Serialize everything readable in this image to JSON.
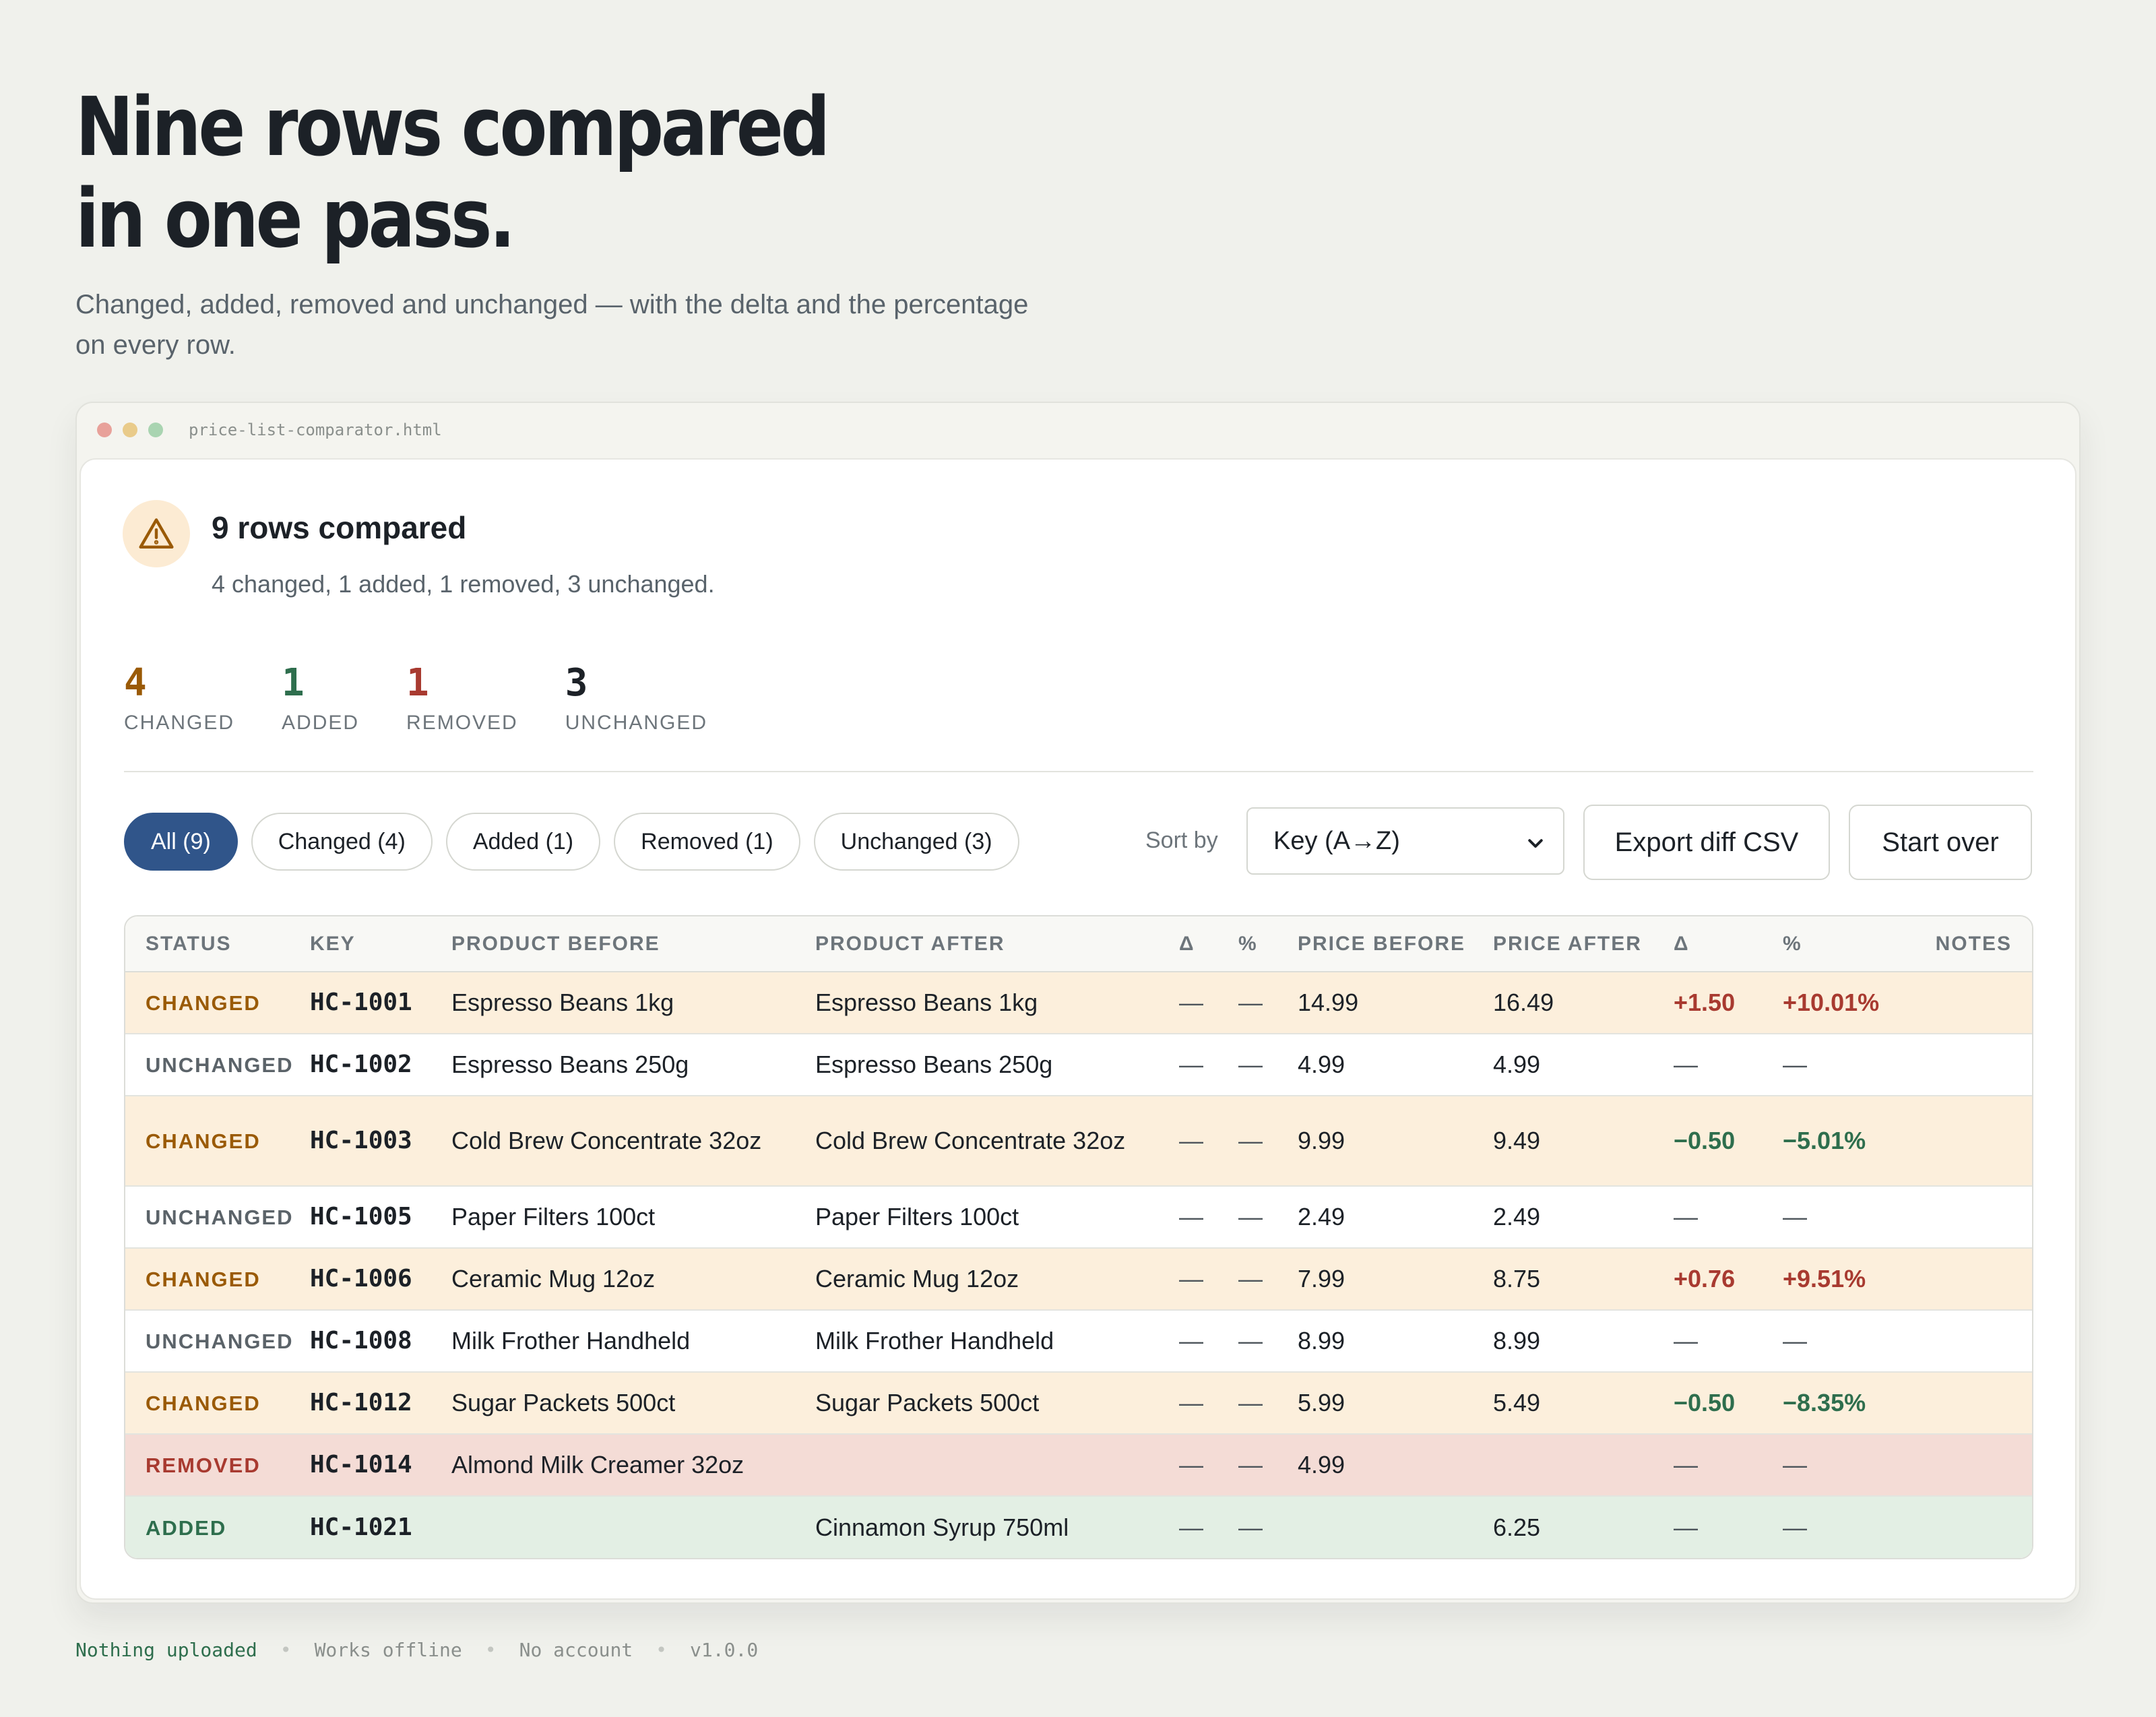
{
  "hero": {
    "title_line1": "Nine rows compared",
    "title_line2": "in one pass.",
    "subtitle": "Changed, added, removed and unchanged — with the delta and the percentage on every row."
  },
  "window": {
    "filename": "price-list-comparator.html"
  },
  "alert": {
    "icon": "warning-triangle-icon",
    "title": "9 rows compared",
    "subtitle": "4 changed, 1 added, 1 removed, 3 unchanged."
  },
  "stats": [
    {
      "value": "4",
      "label": "CHANGED",
      "color": "#9a5a06"
    },
    {
      "value": "1",
      "label": "ADDED",
      "color": "#2e6e4d"
    },
    {
      "value": "1",
      "label": "REMOVED",
      "color": "#a83a30"
    },
    {
      "value": "3",
      "label": "UNCHANGED",
      "color": "#1c2127"
    }
  ],
  "filters": [
    {
      "label": "All (9)",
      "active": true
    },
    {
      "label": "Changed (4)",
      "active": false
    },
    {
      "label": "Added (1)",
      "active": false
    },
    {
      "label": "Removed (1)",
      "active": false
    },
    {
      "label": "Unchanged (3)",
      "active": false
    }
  ],
  "sort": {
    "label": "Sort by",
    "value": "Key (A→Z)"
  },
  "buttons": {
    "export": "Export diff CSV",
    "reset": "Start over"
  },
  "table": {
    "columns": [
      "STATUS",
      "KEY",
      "PRODUCT BEFORE",
      "PRODUCT AFTER",
      "Δ",
      "%",
      "PRICE BEFORE",
      "PRICE AFTER",
      "Δ",
      "%",
      "NOTES"
    ],
    "rows": [
      {
        "status": "CHANGED",
        "key": "HC-1001",
        "product_before": "Espresso Beans 1kg",
        "product_after": "Espresso Beans 1kg",
        "name_delta": "—",
        "name_pct": "—",
        "price_before": "14.99",
        "price_after": "16.49",
        "delta": "+1.50",
        "pct": "+10.01%",
        "notes": "",
        "trend": "up"
      },
      {
        "status": "UNCHANGED",
        "key": "HC-1002",
        "product_before": "Espresso Beans 250g",
        "product_after": "Espresso Beans 250g",
        "name_delta": "—",
        "name_pct": "—",
        "price_before": "4.99",
        "price_after": "4.99",
        "delta": "—",
        "pct": "—",
        "notes": "",
        "trend": "none"
      },
      {
        "status": "CHANGED",
        "key": "HC-1003",
        "product_before": "Cold Brew Concentrate 32oz",
        "product_after": "Cold Brew Concentrate 32oz",
        "name_delta": "—",
        "name_pct": "—",
        "price_before": "9.99",
        "price_after": "9.49",
        "delta": "−0.50",
        "pct": "−5.01%",
        "notes": "",
        "trend": "down"
      },
      {
        "status": "UNCHANGED",
        "key": "HC-1005",
        "product_before": "Paper Filters 100ct",
        "product_after": "Paper Filters 100ct",
        "name_delta": "—",
        "name_pct": "—",
        "price_before": "2.49",
        "price_after": "2.49",
        "delta": "—",
        "pct": "—",
        "notes": "",
        "trend": "none"
      },
      {
        "status": "CHANGED",
        "key": "HC-1006",
        "product_before": "Ceramic Mug 12oz",
        "product_after": "Ceramic Mug 12oz",
        "name_delta": "—",
        "name_pct": "—",
        "price_before": "7.99",
        "price_after": "8.75",
        "delta": "+0.76",
        "pct": "+9.51%",
        "notes": "",
        "trend": "up"
      },
      {
        "status": "UNCHANGED",
        "key": "HC-1008",
        "product_before": "Milk Frother Handheld",
        "product_after": "Milk Frother Handheld",
        "name_delta": "—",
        "name_pct": "—",
        "price_before": "8.99",
        "price_after": "8.99",
        "delta": "—",
        "pct": "—",
        "notes": "",
        "trend": "none"
      },
      {
        "status": "CHANGED",
        "key": "HC-1012",
        "product_before": "Sugar Packets 500ct",
        "product_after": "Sugar Packets 500ct",
        "name_delta": "—",
        "name_pct": "—",
        "price_before": "5.99",
        "price_after": "5.49",
        "delta": "−0.50",
        "pct": "−8.35%",
        "notes": "",
        "trend": "down"
      },
      {
        "status": "REMOVED",
        "key": "HC-1014",
        "product_before": "Almond Milk Creamer 32oz",
        "product_after": "",
        "name_delta": "—",
        "name_pct": "—",
        "price_before": "4.99",
        "price_after": "",
        "delta": "—",
        "pct": "—",
        "notes": "",
        "trend": "none"
      },
      {
        "status": "ADDED",
        "key": "HC-1021",
        "product_before": "",
        "product_after": "Cinnamon Syrup 750ml",
        "name_delta": "—",
        "name_pct": "—",
        "price_before": "",
        "price_after": "6.25",
        "delta": "—",
        "pct": "—",
        "notes": "",
        "trend": "none"
      }
    ]
  },
  "footer": [
    "Nothing uploaded",
    "Works offline",
    "No account",
    "v1.0.0"
  ],
  "colors": {
    "changed": "#9a5a06",
    "added": "#2e6e4d",
    "removed": "#a83a30",
    "accent": "#30558a"
  }
}
